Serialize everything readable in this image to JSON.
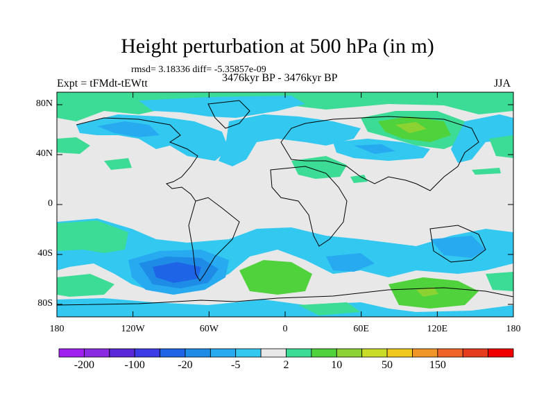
{
  "map": {
    "title": "Height perturbation at 500 hPa (in m)",
    "stats_line": "rmsd= 3.18336 diff= -5.35857e-09",
    "left_label": "Expt = tFMdt-tEWtt",
    "center_label": "3476kyr BP - 3476kyr BP",
    "right_label": "JJA",
    "lon_range": [
      -180,
      180
    ],
    "lat_range": [
      -90,
      90
    ],
    "y_ticks": [
      {
        "value": 80,
        "label": "80N"
      },
      {
        "value": 40,
        "label": "40N"
      },
      {
        "value": 0,
        "label": "0"
      },
      {
        "value": -40,
        "label": "40S"
      },
      {
        "value": -80,
        "label": "80S"
      }
    ],
    "x_ticks": [
      {
        "value": -180,
        "label": "180"
      },
      {
        "value": -120,
        "label": "120W"
      },
      {
        "value": -60,
        "label": "60W"
      },
      {
        "value": 0,
        "label": "0"
      },
      {
        "value": 60,
        "label": "60E"
      },
      {
        "value": 120,
        "label": "120E"
      },
      {
        "value": 180,
        "label": "180"
      }
    ]
  },
  "colorbar": {
    "colors": [
      "#a020f0",
      "#8a2be2",
      "#5a28d8",
      "#3c3ce6",
      "#1e64e6",
      "#1e8ce6",
      "#28aaf0",
      "#32c8f0",
      "#e8e8e8",
      "#3cdc96",
      "#50d23c",
      "#8cd232",
      "#c8dc28",
      "#f0c81e",
      "#f09628",
      "#f06428",
      "#e63c1e",
      "#f00000"
    ],
    "labels": [
      "-200",
      "-100",
      "-20",
      "-5",
      "2",
      "10",
      "50",
      "150"
    ],
    "label_boundaries": [
      1,
      3,
      5,
      7,
      9,
      11,
      13,
      15
    ]
  }
}
